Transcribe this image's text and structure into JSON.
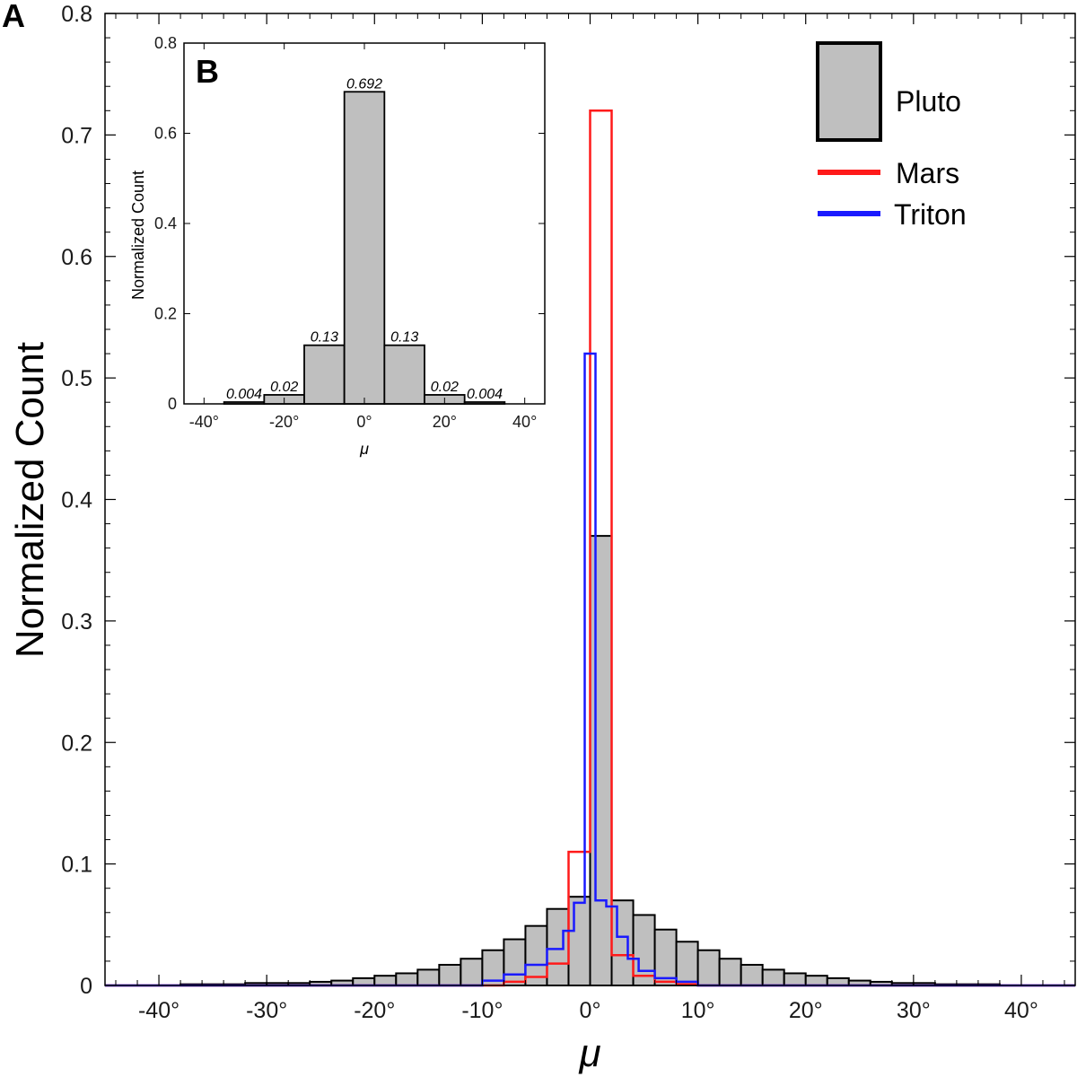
{
  "panel_a_label": "A",
  "panel_b_label": "B",
  "colors": {
    "pluto_fill": "#bfbfbf",
    "pluto_edge": "#000000",
    "mars": "#ff1a1a",
    "triton": "#1a1aff"
  },
  "chart_data": [
    {
      "panel": "A",
      "type": "bar",
      "xlabel": "μ",
      "ylabel": "Normalized Count",
      "xlim": [
        -45,
        45
      ],
      "ylim": [
        0,
        0.8
      ],
      "xticks": [
        -40,
        -30,
        -20,
        -10,
        0,
        10,
        20,
        30,
        40
      ],
      "xtick_labels": [
        "-40°",
        "-30°",
        "-20°",
        "-10°",
        "0°",
        "10°",
        "20°",
        "30°",
        "40°"
      ],
      "yticks": [
        0,
        0.1,
        0.2,
        0.3,
        0.4,
        0.5,
        0.6,
        0.7,
        0.8
      ],
      "ytick_labels": [
        "0",
        "0.1",
        "0.2",
        "0.3",
        "0.4",
        "0.5",
        "0.6",
        "0.7",
        "0.8"
      ],
      "legend": {
        "position": "top-right",
        "entries": [
          "Pluto",
          "Mars",
          "Triton"
        ]
      },
      "series": [
        {
          "name": "Pluto",
          "style": "filled-histogram",
          "x": [
            -37,
            -35,
            -33,
            -31,
            -29,
            -27,
            -25,
            -23,
            -21,
            -19,
            -17,
            -15,
            -13,
            -11,
            -9,
            -7,
            -5,
            -3,
            -1,
            1,
            3,
            5,
            7,
            9,
            11,
            13,
            15,
            17,
            19,
            21,
            23,
            25,
            27,
            29,
            31,
            33,
            35,
            37
          ],
          "values": [
            0.001,
            0.001,
            0.001,
            0.002,
            0.002,
            0.002,
            0.003,
            0.004,
            0.006,
            0.008,
            0.01,
            0.013,
            0.017,
            0.022,
            0.029,
            0.038,
            0.049,
            0.063,
            0.073,
            0.37,
            0.07,
            0.058,
            0.046,
            0.036,
            0.029,
            0.022,
            0.017,
            0.013,
            0.01,
            0.008,
            0.006,
            0.004,
            0.003,
            0.002,
            0.002,
            0.001,
            0.001,
            0.001
          ]
        },
        {
          "name": "Mars",
          "style": "step",
          "x": [
            -7,
            -5,
            -3,
            -1,
            1,
            3,
            5,
            7,
            9
          ],
          "values": [
            0.003,
            0.007,
            0.018,
            0.11,
            0.72,
            0.025,
            0.008,
            0.003,
            0.001
          ]
        },
        {
          "name": "Triton",
          "style": "step",
          "x": [
            -9,
            -7,
            -5,
            -3,
            -2,
            -1,
            0,
            1,
            2,
            3,
            4,
            5,
            7,
            9
          ],
          "values": [
            0.004,
            0.009,
            0.017,
            0.03,
            0.045,
            0.068,
            0.52,
            0.07,
            0.065,
            0.04,
            0.022,
            0.012,
            0.006,
            0.003
          ]
        }
      ]
    },
    {
      "panel": "B",
      "type": "bar",
      "xlabel": "μ",
      "ylabel": "Normalized Count",
      "xlim": [
        -45,
        45
      ],
      "ylim": [
        0,
        0.8
      ],
      "xticks": [
        -40,
        -20,
        0,
        20,
        40
      ],
      "xtick_labels": [
        "-40°",
        "-20°",
        "0°",
        "20°",
        "40°"
      ],
      "yticks": [
        0,
        0.2,
        0.4,
        0.6,
        0.8
      ],
      "ytick_labels": [
        "0",
        "0.2",
        "0.4",
        "0.6",
        "0.8"
      ],
      "series": [
        {
          "name": "Pluto",
          "x": [
            -30,
            -20,
            -10,
            0,
            10,
            20,
            30
          ],
          "values": [
            0.004,
            0.02,
            0.13,
            0.692,
            0.13,
            0.02,
            0.004
          ],
          "labels": [
            "0.004",
            "0.02",
            "0.13",
            "0.692",
            "0.13",
            "0.02",
            "0.004"
          ]
        }
      ]
    }
  ]
}
